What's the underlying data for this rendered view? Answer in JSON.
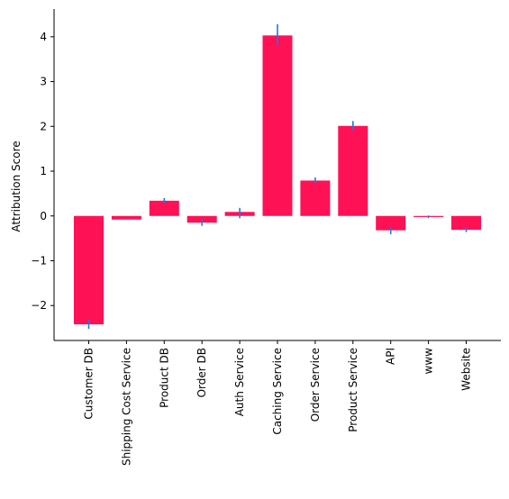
{
  "chart_data": {
    "type": "bar",
    "title": "",
    "xlabel": "",
    "ylabel": "Attribution Score",
    "ylim": [
      -2.78,
      4.62
    ],
    "yticks": [
      -2,
      -1,
      0,
      1,
      2,
      3,
      4
    ],
    "ytick_labels": [
      "−2",
      "−1",
      "0",
      "1",
      "2",
      "3",
      "4"
    ],
    "categories": [
      "Customer DB",
      "Shipping Cost Service",
      "Product DB",
      "Order DB",
      "Auth Service",
      "Caching Service",
      "Order Service",
      "Product Service",
      "API",
      "www",
      "Website"
    ],
    "values": [
      -2.42,
      -0.08,
      0.34,
      -0.15,
      0.09,
      4.03,
      0.79,
      2.01,
      -0.32,
      -0.02,
      -0.31
    ],
    "error_low": [
      -2.52,
      -0.08,
      0.29,
      -0.22,
      -0.05,
      3.82,
      0.73,
      1.92,
      -0.41,
      -0.05,
      -0.36
    ],
    "error_high": [
      -2.32,
      -0.08,
      0.4,
      -0.08,
      0.18,
      4.28,
      0.86,
      2.12,
      -0.26,
      0.01,
      -0.25
    ],
    "bar_color": "#ff1155",
    "error_color": "#1f77e8",
    "grid": false,
    "legend": "none"
  }
}
